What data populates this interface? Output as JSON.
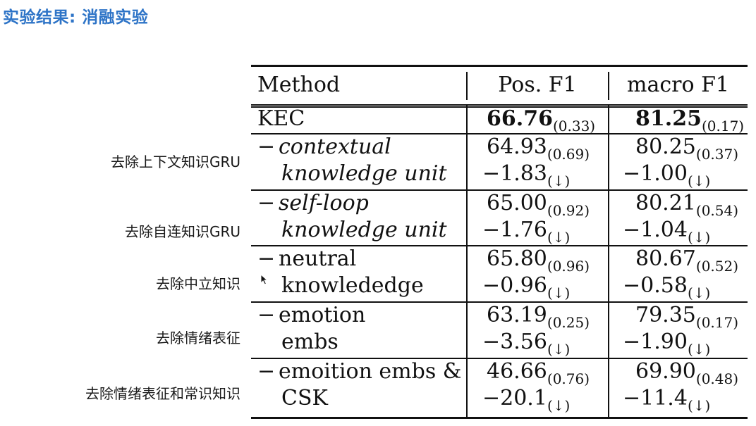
{
  "title": "实验结果: 消融实验",
  "side_labels": [
    "去除上下文知识GRU",
    "去除自连知识GRU",
    "去除中立知识",
    "去除情绪表征",
    "去除情绪表征和常识知识"
  ],
  "table": {
    "headers": [
      "Method",
      "Pos. F1",
      "macro F1"
    ],
    "kec": {
      "method": "KEC",
      "pos": {
        "value": "66.76",
        "std": "(0.33)"
      },
      "macro": {
        "value": "81.25",
        "std": "(0.17)"
      }
    },
    "rows": [
      {
        "line1": "contextual",
        "line2": "knowledge unit",
        "italic": true,
        "pos": {
          "value": "64.93",
          "std": "(0.69)",
          "delta": "−1.83",
          "arrow": "(↓)"
        },
        "macro": {
          "value": "80.25",
          "std": "(0.37)",
          "delta": "−1.00",
          "arrow": "(↓)"
        }
      },
      {
        "line1": "self-loop",
        "line2": "knowledge unit",
        "italic": true,
        "pos": {
          "value": "65.00",
          "std": "(0.92)",
          "delta": "−1.76",
          "arrow": "(↓)"
        },
        "macro": {
          "value": "80.21",
          "std": "(0.54)",
          "delta": "−1.04",
          "arrow": "(↓)"
        }
      },
      {
        "line1": "neutral",
        "line2": "knowlededge",
        "italic": false,
        "pos": {
          "value": "65.80",
          "std": "(0.96)",
          "delta": "−0.96",
          "arrow": "(↓)"
        },
        "macro": {
          "value": "80.67",
          "std": "(0.52)",
          "delta": "−0.58",
          "arrow": "(↓)"
        }
      },
      {
        "line1": "emotion",
        "line2": "embs",
        "italic": false,
        "pos": {
          "value": "63.19",
          "std": "(0.25)",
          "delta": "−3.56",
          "arrow": "(↓)"
        },
        "macro": {
          "value": "79.35",
          "std": "(0.17)",
          "delta": "−1.90",
          "arrow": "(↓)"
        }
      },
      {
        "line1": "emoition embs &",
        "line2": "CSK",
        "italic": false,
        "pos": {
          "value": "46.66",
          "std": "(0.76)",
          "delta": "−20.1",
          "arrow": "(↓)"
        },
        "macro": {
          "value": "69.90",
          "std": "(0.48)",
          "delta": "−11.4",
          "arrow": "(↓)"
        }
      }
    ],
    "dash": "−"
  },
  "colors": {
    "title": "#2e74c7",
    "text": "#111111"
  }
}
